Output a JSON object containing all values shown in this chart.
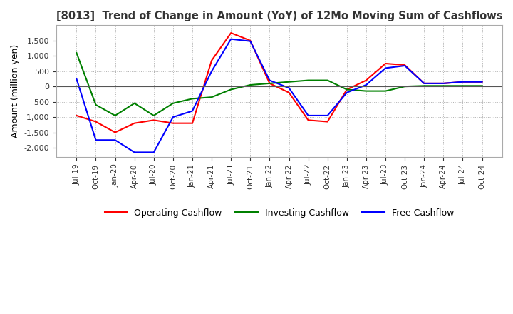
{
  "title": "[8013]  Trend of Change in Amount (YoY) of 12Mo Moving Sum of Cashflows",
  "ylabel": "Amount (million yen)",
  "ylim": [
    -2300,
    2000
  ],
  "yticks": [
    -2000,
    -1500,
    -1000,
    -500,
    0,
    500,
    1000,
    1500
  ],
  "background_color": "#ffffff",
  "grid_color": "#b0b0b0",
  "x_labels": [
    "Jul-19",
    "Oct-19",
    "Jan-20",
    "Apr-20",
    "Jul-20",
    "Oct-20",
    "Jan-21",
    "Apr-21",
    "Jul-21",
    "Oct-21",
    "Jan-22",
    "Apr-22",
    "Jul-22",
    "Oct-22",
    "Jan-23",
    "Apr-23",
    "Jul-23",
    "Oct-23",
    "Jan-24",
    "Apr-24",
    "Jul-24",
    "Oct-24"
  ],
  "operating": [
    -950,
    -1150,
    -1500,
    -1200,
    -1100,
    -1200,
    -1200,
    850,
    1750,
    1500,
    100,
    -200,
    -1100,
    -1150,
    -100,
    200,
    750,
    700,
    100,
    100,
    150,
    150
  ],
  "investing": [
    1100,
    -600,
    -950,
    -550,
    -950,
    -550,
    -400,
    -350,
    -100,
    50,
    100,
    150,
    200,
    200,
    -100,
    -150,
    -150,
    0,
    20,
    20,
    20,
    20
  ],
  "free": [
    250,
    -1750,
    -1750,
    -2150,
    -2150,
    -1000,
    -800,
    500,
    1550,
    1480,
    200,
    -50,
    -950,
    -950,
    -200,
    50,
    600,
    680,
    100,
    100,
    150,
    150
  ],
  "op_color": "#ff0000",
  "inv_color": "#008000",
  "free_color": "#0000ff",
  "line_width": 1.5
}
